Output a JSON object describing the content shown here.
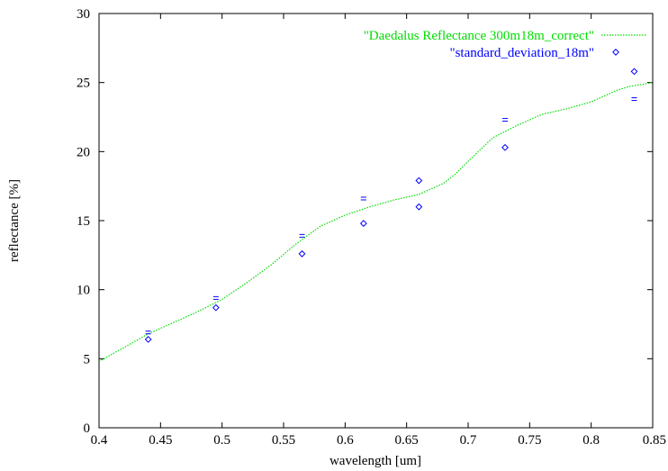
{
  "chart_data": {
    "type": "scatter",
    "xlabel": "wavelength [um]",
    "ylabel": "reflectance [%]",
    "xlim": [
      0.4,
      0.85
    ],
    "ylim": [
      0,
      30
    ],
    "x_ticks": [
      "0.4",
      "0.45",
      "0.5",
      "0.55",
      "0.6",
      "0.65",
      "0.7",
      "0.75",
      "0.8",
      "0.85"
    ],
    "y_ticks": [
      "0",
      "5",
      "10",
      "15",
      "20",
      "25",
      "30"
    ],
    "grid": false,
    "legend_position": "top-right",
    "series": [
      {
        "name": "\"Daedalus Reflectance 300m18m_correct\"",
        "style": "dotted-line",
        "color": "#00dd00",
        "x": [
          0.4,
          0.42,
          0.44,
          0.46,
          0.48,
          0.5,
          0.52,
          0.54,
          0.56,
          0.58,
          0.6,
          0.62,
          0.64,
          0.66,
          0.68,
          0.69,
          0.7,
          0.72,
          0.74,
          0.76,
          0.78,
          0.8,
          0.82,
          0.83,
          0.85
        ],
        "y": [
          4.8,
          5.8,
          6.8,
          7.6,
          8.4,
          9.3,
          10.5,
          11.8,
          13.3,
          14.6,
          15.4,
          16.0,
          16.5,
          16.9,
          17.7,
          18.4,
          19.3,
          21.0,
          21.9,
          22.7,
          23.1,
          23.6,
          24.4,
          24.7,
          25.0
        ]
      },
      {
        "name": "\"standard_deviation_18m\"",
        "style": "diamond-markers",
        "color": "#0000ff",
        "x": [
          0.44,
          0.495,
          0.565,
          0.615,
          0.66,
          0.66,
          0.73,
          0.82,
          0.835
        ],
        "y": [
          6.4,
          8.7,
          12.6,
          14.8,
          17.9,
          16.0,
          20.3,
          27.2,
          25.8
        ]
      },
      {
        "name": "",
        "style": "tick-markers",
        "color": "#0000ff",
        "x": [
          0.44,
          0.495,
          0.565,
          0.615,
          0.73,
          0.835
        ],
        "y": [
          6.9,
          9.4,
          13.9,
          16.6,
          22.3,
          23.8
        ]
      }
    ]
  }
}
